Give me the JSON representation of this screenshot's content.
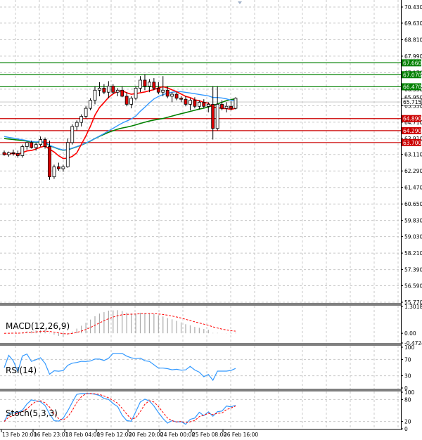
{
  "chart_data": [
    {
      "type": "candlestick",
      "panel": "price",
      "ylim": [
        55.77,
        70.43
      ],
      "y_ticks": [
        "70.430",
        "69.630",
        "68.810",
        "67.990",
        "67.170",
        "66.350",
        "65.530",
        "64.710",
        "63.910",
        "63.110",
        "62.290",
        "61.470",
        "60.650",
        "59.830",
        "59.030",
        "58.210",
        "57.390",
        "56.590",
        "55.770"
      ],
      "x_ticks": [
        "13 Feb 20:00",
        "16 Feb 23:01",
        "18 Feb 04:00",
        "19 Feb 12:00",
        "20 Feb 20:00",
        "24 Feb 00:00",
        "25 Feb 08:00",
        "26 Feb 16:00"
      ],
      "current_price": {
        "label": "65.715",
        "value": 65.715
      },
      "hidden_label": {
        "label": "65.950",
        "value": 65.95
      },
      "levels": [
        {
          "label": "67.660",
          "value": 67.66,
          "color": "#008000"
        },
        {
          "label": "67.070",
          "value": 67.07,
          "color": "#008000"
        },
        {
          "label": "66.470",
          "value": 66.47,
          "color": "#008000"
        },
        {
          "label": "64.890",
          "value": 64.89,
          "color": "#cc0000"
        },
        {
          "label": "64.290",
          "value": 64.29,
          "color": "#cc0000"
        },
        {
          "label": "63.700",
          "value": 63.7,
          "color": "#cc0000"
        }
      ],
      "candles": [
        [
          63.2,
          63.3,
          63.05,
          63.1
        ],
        [
          63.1,
          63.25,
          63.0,
          63.2
        ],
        [
          63.2,
          63.35,
          63.05,
          63.15
        ],
        [
          63.15,
          63.3,
          62.95,
          63.05
        ],
        [
          63.05,
          63.6,
          62.95,
          63.5
        ],
        [
          63.5,
          63.75,
          63.35,
          63.7
        ],
        [
          63.7,
          63.8,
          63.4,
          63.45
        ],
        [
          63.45,
          63.7,
          63.3,
          63.6
        ],
        [
          63.6,
          64.0,
          63.5,
          63.85
        ],
        [
          63.85,
          63.95,
          63.4,
          63.5
        ],
        [
          63.5,
          63.8,
          61.85,
          62.0
        ],
        [
          62.0,
          62.6,
          61.9,
          62.5
        ],
        [
          62.5,
          62.7,
          62.3,
          62.4
        ],
        [
          62.4,
          62.6,
          62.25,
          62.5
        ],
        [
          62.5,
          63.9,
          62.45,
          63.7
        ],
        [
          63.7,
          64.6,
          63.6,
          64.5
        ],
        [
          64.5,
          64.8,
          64.3,
          64.7
        ],
        [
          64.7,
          65.1,
          64.5,
          65.0
        ],
        [
          65.0,
          65.5,
          64.9,
          65.4
        ],
        [
          65.4,
          65.9,
          65.3,
          65.8
        ],
        [
          65.8,
          66.5,
          65.6,
          66.3
        ],
        [
          66.3,
          66.7,
          66.0,
          66.4
        ],
        [
          66.4,
          66.6,
          66.1,
          66.2
        ],
        [
          66.2,
          66.75,
          65.9,
          66.5
        ],
        [
          66.5,
          66.6,
          66.1,
          66.2
        ],
        [
          66.2,
          66.4,
          66.0,
          66.3
        ],
        [
          66.3,
          66.5,
          65.95,
          66.0
        ],
        [
          66.0,
          66.2,
          65.5,
          65.6
        ],
        [
          65.6,
          66.0,
          65.4,
          65.9
        ],
        [
          65.9,
          66.5,
          65.8,
          66.4
        ],
        [
          66.4,
          67.0,
          66.2,
          66.8
        ],
        [
          66.8,
          67.1,
          66.3,
          66.5
        ],
        [
          66.5,
          66.85,
          66.2,
          66.7
        ],
        [
          66.7,
          66.9,
          66.3,
          66.4
        ],
        [
          66.4,
          66.7,
          66.1,
          66.2
        ],
        [
          66.2,
          67.0,
          66.0,
          66.3
        ],
        [
          66.3,
          66.5,
          65.9,
          66.0
        ],
        [
          66.0,
          66.2,
          65.7,
          66.1
        ],
        [
          66.1,
          66.2,
          65.8,
          65.9
        ],
        [
          65.9,
          66.0,
          65.7,
          65.85
        ],
        [
          65.85,
          66.0,
          65.5,
          65.6
        ],
        [
          65.6,
          65.9,
          65.3,
          65.8
        ],
        [
          65.8,
          65.95,
          65.4,
          65.5
        ],
        [
          65.5,
          65.8,
          65.35,
          65.7
        ],
        [
          65.7,
          65.85,
          65.4,
          65.5
        ],
        [
          65.5,
          65.7,
          65.2,
          65.6
        ],
        [
          65.6,
          66.5,
          63.85,
          64.4
        ],
        [
          64.4,
          66.5,
          64.3,
          65.6
        ],
        [
          65.6,
          65.8,
          65.3,
          65.4
        ],
        [
          65.4,
          65.7,
          65.2,
          65.5
        ],
        [
          65.5,
          65.75,
          65.3,
          65.4
        ],
        [
          65.4,
          65.95,
          65.35,
          65.9
        ]
      ]
    },
    {
      "type": "histogram",
      "panel": "macd",
      "name": "MACD(12,26,9)",
      "ylim": [
        -0.4724,
        1.3018
      ],
      "y_ticks": [
        "1.3018",
        "0.00",
        "-0.4724"
      ]
    },
    {
      "type": "line",
      "panel": "rsi",
      "name": "RSI(14)",
      "ylim": [
        0,
        100
      ],
      "y_ticks": [
        "100",
        "70",
        "30",
        "0"
      ]
    },
    {
      "type": "line",
      "panel": "stoch",
      "name": "Stoch(5,3,3)",
      "ylim": [
        0,
        100
      ],
      "y_ticks": [
        "100",
        "80",
        "20",
        "0"
      ]
    }
  ],
  "colors": {
    "bull": "#00aa00",
    "bear": "#dd0000",
    "ma_fast": "#ff0000",
    "ma_mid": "#3399ff",
    "ma_slow": "#008000",
    "macd_bar": "#aaaaaa",
    "macd_signal": "#ff0000",
    "rsi": "#3399ff",
    "stoch_main": "#3399ff",
    "stoch_signal": "#ff0000",
    "grid": "#c8c8c8"
  }
}
